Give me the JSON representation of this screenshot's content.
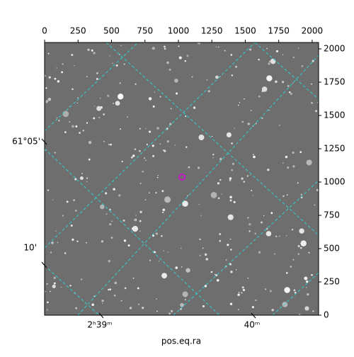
{
  "chart_data": {
    "type": "image",
    "xlabel": "pos.eq.ra",
    "xlim": [
      0,
      2048
    ],
    "xticks": [
      0,
      250,
      500,
      750,
      1000,
      1250,
      1500,
      1750,
      2000
    ],
    "ylim": [
      0,
      2048
    ],
    "yticks": [
      0,
      250,
      500,
      750,
      1000,
      1250,
      1500,
      1750,
      2000
    ],
    "left_labels": [
      "61°05'",
      "10'"
    ],
    "bottom_labels": [
      "2ʰ39ᵐ",
      "40ᵐ"
    ],
    "marker": {
      "x": 1027,
      "y": 1037,
      "color": "#e000e0"
    }
  }
}
